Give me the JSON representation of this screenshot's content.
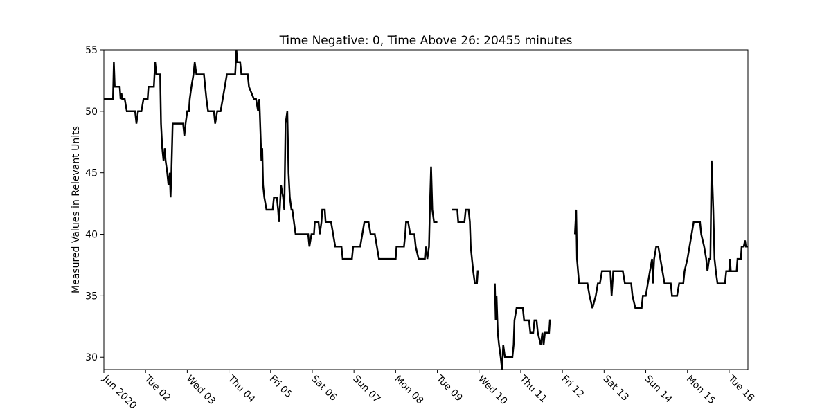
{
  "chart_data": {
    "type": "line",
    "title": "Time Negative: 0, Time Above 26: 20455 minutes",
    "xlabel": "",
    "ylabel": "Measured Values in Relevant Units",
    "xlim": [
      1,
      16.45
    ],
    "ylim": [
      29,
      55
    ],
    "grid": false,
    "legend": "none",
    "line_color": "#000000",
    "x_unit": "day of June 2020",
    "x_ticks": [
      {
        "x": 1,
        "label": "Jun 2020"
      },
      {
        "x": 2,
        "label": "Tue 02"
      },
      {
        "x": 3,
        "label": "Wed 03"
      },
      {
        "x": 4,
        "label": "Thu 04"
      },
      {
        "x": 5,
        "label": "Fri 05"
      },
      {
        "x": 6,
        "label": "Sat 06"
      },
      {
        "x": 7,
        "label": "Sun 07"
      },
      {
        "x": 8,
        "label": "Mon 08"
      },
      {
        "x": 9,
        "label": "Tue 09"
      },
      {
        "x": 10,
        "label": "Wed 10"
      },
      {
        "x": 11,
        "label": "Thu 11"
      },
      {
        "x": 12,
        "label": "Fri 12"
      },
      {
        "x": 13,
        "label": "Sat 13"
      },
      {
        "x": 14,
        "label": "Sun 14"
      },
      {
        "x": 15,
        "label": "Mon 15"
      },
      {
        "x": 16,
        "label": "Tue 16"
      }
    ],
    "y_ticks": [
      30,
      35,
      40,
      45,
      50,
      55
    ],
    "segments": [
      [
        [
          1.0,
          51
        ],
        [
          1.22,
          51
        ],
        [
          1.24,
          54
        ],
        [
          1.26,
          52
        ],
        [
          1.38,
          52
        ],
        [
          1.4,
          51
        ],
        [
          1.42,
          51.5
        ],
        [
          1.44,
          51
        ],
        [
          1.5,
          51
        ],
        [
          1.55,
          50
        ],
        [
          1.75,
          50
        ],
        [
          1.78,
          49
        ],
        [
          1.82,
          50
        ],
        [
          1.9,
          50
        ],
        [
          1.95,
          51
        ],
        [
          2.05,
          51
        ],
        [
          2.07,
          52
        ],
        [
          2.2,
          52
        ],
        [
          2.23,
          54
        ],
        [
          2.26,
          53
        ],
        [
          2.35,
          53
        ],
        [
          2.37,
          49
        ],
        [
          2.4,
          47
        ],
        [
          2.43,
          46
        ],
        [
          2.46,
          47
        ],
        [
          2.48,
          46
        ],
        [
          2.52,
          45
        ],
        [
          2.55,
          44
        ],
        [
          2.58,
          45
        ],
        [
          2.6,
          43
        ],
        [
          2.62,
          45
        ],
        [
          2.65,
          49
        ],
        [
          2.9,
          49
        ],
        [
          2.93,
          48
        ],
        [
          2.96,
          49
        ],
        [
          3.0,
          50
        ],
        [
          3.04,
          50
        ],
        [
          3.06,
          51
        ],
        [
          3.1,
          52
        ],
        [
          3.15,
          53
        ],
        [
          3.18,
          54
        ],
        [
          3.22,
          53
        ],
        [
          3.4,
          53
        ],
        [
          3.43,
          52
        ],
        [
          3.46,
          51
        ],
        [
          3.5,
          50
        ],
        [
          3.64,
          50
        ],
        [
          3.67,
          49
        ],
        [
          3.72,
          50
        ],
        [
          3.8,
          50
        ],
        [
          3.85,
          51
        ],
        [
          3.9,
          52
        ],
        [
          3.95,
          53
        ],
        [
          4.15,
          53
        ],
        [
          4.18,
          55
        ],
        [
          4.2,
          54
        ],
        [
          4.27,
          54
        ],
        [
          4.3,
          53
        ],
        [
          4.45,
          53
        ],
        [
          4.48,
          52
        ],
        [
          4.6,
          51
        ],
        [
          4.65,
          51
        ],
        [
          4.7,
          50
        ],
        [
          4.73,
          51
        ],
        [
          4.75,
          49
        ],
        [
          4.78,
          46
        ],
        [
          4.8,
          47
        ],
        [
          4.82,
          44
        ],
        [
          4.85,
          43
        ],
        [
          4.9,
          42
        ],
        [
          5.05,
          42
        ],
        [
          5.08,
          43
        ],
        [
          5.15,
          43
        ],
        [
          5.18,
          42
        ],
        [
          5.2,
          41
        ],
        [
          5.22,
          42
        ],
        [
          5.25,
          44
        ],
        [
          5.3,
          43
        ],
        [
          5.33,
          42
        ],
        [
          5.36,
          49
        ],
        [
          5.4,
          50
        ],
        [
          5.43,
          45
        ],
        [
          5.46,
          43
        ],
        [
          5.5,
          42
        ],
        [
          5.52,
          42
        ],
        [
          5.56,
          41
        ],
        [
          5.6,
          40
        ],
        [
          5.9,
          40
        ],
        [
          5.93,
          39
        ],
        [
          5.98,
          40
        ],
        [
          6.04,
          40
        ],
        [
          6.06,
          41
        ],
        [
          6.15,
          41
        ],
        [
          6.18,
          40
        ],
        [
          6.22,
          41
        ],
        [
          6.24,
          42
        ],
        [
          6.3,
          42
        ],
        [
          6.32,
          41
        ],
        [
          6.45,
          41
        ],
        [
          6.5,
          40
        ],
        [
          6.55,
          39
        ],
        [
          6.7,
          39
        ],
        [
          6.73,
          38
        ],
        [
          6.95,
          38
        ],
        [
          6.98,
          39
        ],
        [
          7.15,
          39
        ],
        [
          7.2,
          40
        ],
        [
          7.25,
          41
        ],
        [
          7.35,
          41
        ],
        [
          7.4,
          40
        ],
        [
          7.5,
          40
        ],
        [
          7.55,
          39
        ],
        [
          7.6,
          38
        ],
        [
          8.0,
          38
        ],
        [
          8.02,
          39
        ],
        [
          8.2,
          39
        ],
        [
          8.23,
          40
        ],
        [
          8.25,
          41
        ],
        [
          8.3,
          41
        ],
        [
          8.35,
          40
        ],
        [
          8.45,
          40
        ],
        [
          8.48,
          39
        ],
        [
          8.55,
          38
        ],
        [
          8.7,
          38
        ],
        [
          8.72,
          39
        ],
        [
          8.76,
          38
        ],
        [
          8.8,
          39
        ],
        [
          8.82,
          42
        ],
        [
          8.85,
          45.5
        ],
        [
          8.88,
          42
        ],
        [
          8.92,
          41
        ],
        [
          9.0,
          41
        ]
      ],
      [
        [
          9.35,
          42
        ],
        [
          9.48,
          42
        ],
        [
          9.5,
          41
        ],
        [
          9.65,
          41
        ],
        [
          9.68,
          42
        ],
        [
          9.75,
          42
        ],
        [
          9.78,
          41
        ],
        [
          9.8,
          39
        ],
        [
          9.83,
          38
        ],
        [
          9.86,
          37
        ],
        [
          9.9,
          36
        ],
        [
          9.95,
          36
        ],
        [
          9.97,
          37
        ],
        [
          10.0,
          37
        ]
      ],
      [
        [
          10.38,
          36
        ],
        [
          10.4,
          33
        ],
        [
          10.42,
          35
        ],
        [
          10.45,
          32
        ],
        [
          10.48,
          31
        ],
        [
          10.52,
          30
        ],
        [
          10.55,
          29
        ],
        [
          10.58,
          31
        ],
        [
          10.62,
          30
        ],
        [
          10.8,
          30
        ],
        [
          10.83,
          31
        ],
        [
          10.85,
          33
        ],
        [
          10.9,
          34
        ],
        [
          11.05,
          34
        ],
        [
          11.08,
          33
        ],
        [
          11.2,
          33
        ],
        [
          11.23,
          32
        ],
        [
          11.3,
          32
        ],
        [
          11.33,
          33
        ],
        [
          11.38,
          33
        ],
        [
          11.41,
          32
        ],
        [
          11.48,
          31
        ],
        [
          11.52,
          32
        ],
        [
          11.55,
          31
        ],
        [
          11.58,
          32
        ],
        [
          11.68,
          32
        ],
        [
          11.7,
          33
        ],
        [
          11.72,
          33
        ]
      ],
      [
        [
          12.3,
          40
        ],
        [
          12.33,
          42
        ],
        [
          12.35,
          38
        ],
        [
          12.4,
          36
        ],
        [
          12.55,
          36
        ],
        [
          12.6,
          36
        ],
        [
          12.65,
          35
        ],
        [
          12.72,
          34
        ],
        [
          12.8,
          35
        ],
        [
          12.85,
          36
        ],
        [
          12.9,
          36
        ],
        [
          12.95,
          37
        ],
        [
          13.15,
          37
        ],
        [
          13.18,
          35
        ],
        [
          13.22,
          37
        ],
        [
          13.45,
          37
        ],
        [
          13.5,
          36
        ],
        [
          13.65,
          36
        ],
        [
          13.68,
          35
        ],
        [
          13.75,
          34
        ],
        [
          13.9,
          34
        ],
        [
          13.93,
          35
        ],
        [
          14.0,
          35
        ],
        [
          14.05,
          36
        ],
        [
          14.1,
          37
        ],
        [
          14.15,
          38
        ],
        [
          14.17,
          36
        ],
        [
          14.2,
          38
        ],
        [
          14.25,
          39
        ],
        [
          14.3,
          39
        ],
        [
          14.35,
          38
        ],
        [
          14.4,
          37
        ],
        [
          14.45,
          36
        ],
        [
          14.6,
          36
        ],
        [
          14.63,
          35
        ],
        [
          14.75,
          35
        ],
        [
          14.8,
          36
        ],
        [
          14.9,
          36
        ],
        [
          14.93,
          37
        ],
        [
          15.0,
          38
        ],
        [
          15.05,
          39
        ],
        [
          15.1,
          40
        ],
        [
          15.15,
          41
        ],
        [
          15.3,
          41
        ],
        [
          15.33,
          40
        ],
        [
          15.4,
          39
        ],
        [
          15.45,
          38
        ],
        [
          15.48,
          37
        ],
        [
          15.52,
          38
        ],
        [
          15.55,
          38
        ],
        [
          15.58,
          46
        ],
        [
          15.62,
          42
        ],
        [
          15.65,
          38
        ],
        [
          15.68,
          37
        ],
        [
          15.72,
          36
        ],
        [
          15.9,
          36
        ],
        [
          15.93,
          37
        ],
        [
          16.0,
          37
        ],
        [
          16.02,
          38
        ],
        [
          16.04,
          37
        ],
        [
          16.18,
          37
        ],
        [
          16.2,
          38
        ],
        [
          16.28,
          38
        ],
        [
          16.3,
          39
        ],
        [
          16.35,
          39
        ],
        [
          16.38,
          39.5
        ],
        [
          16.4,
          39
        ],
        [
          16.45,
          39
        ]
      ]
    ]
  }
}
